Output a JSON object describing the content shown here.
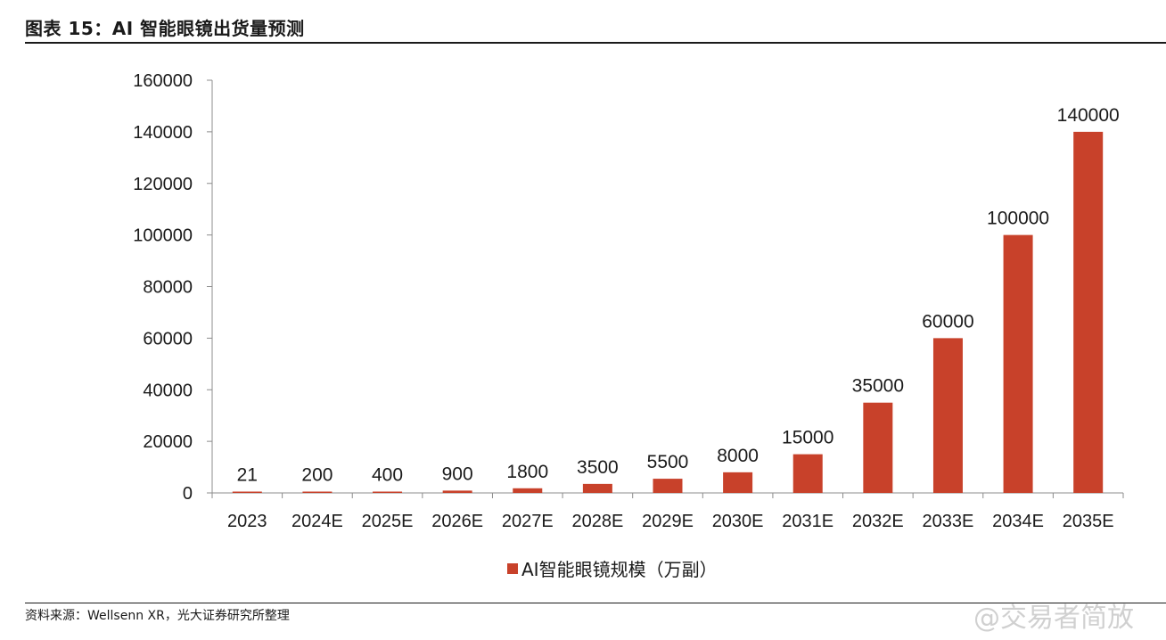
{
  "header": {
    "title": "图表 15：AI 智能眼镜出货量预测"
  },
  "footer": {
    "source": "资料来源：Wellsenn XR，光大证券研究所整理",
    "watermark": "@交易者简放"
  },
  "chart_data": {
    "type": "bar",
    "title": "图表 15：AI 智能眼镜出货量预测",
    "categories": [
      "2023",
      "2024E",
      "2025E",
      "2026E",
      "2027E",
      "2028E",
      "2029E",
      "2030E",
      "2031E",
      "2032E",
      "2033E",
      "2034E",
      "2035E"
    ],
    "series": [
      {
        "name": "AI智能眼镜规模（万副）",
        "values": [
          21,
          200,
          400,
          900,
          1800,
          3500,
          5500,
          8000,
          15000,
          35000,
          60000,
          100000,
          140000
        ],
        "color": "#C8412A"
      }
    ],
    "data_labels": [
      "21",
      "200",
      "400",
      "900",
      "1800",
      "3500",
      "5500",
      "8000",
      "15000",
      "35000",
      "60000",
      "100000",
      "140000"
    ],
    "ylim": [
      0,
      160000
    ],
    "yticks": [
      "0",
      "20000",
      "40000",
      "60000",
      "80000",
      "100000",
      "120000",
      "140000",
      "160000"
    ],
    "xlabel": "",
    "ylabel": "",
    "grid": false,
    "legend": "bottom-center"
  }
}
